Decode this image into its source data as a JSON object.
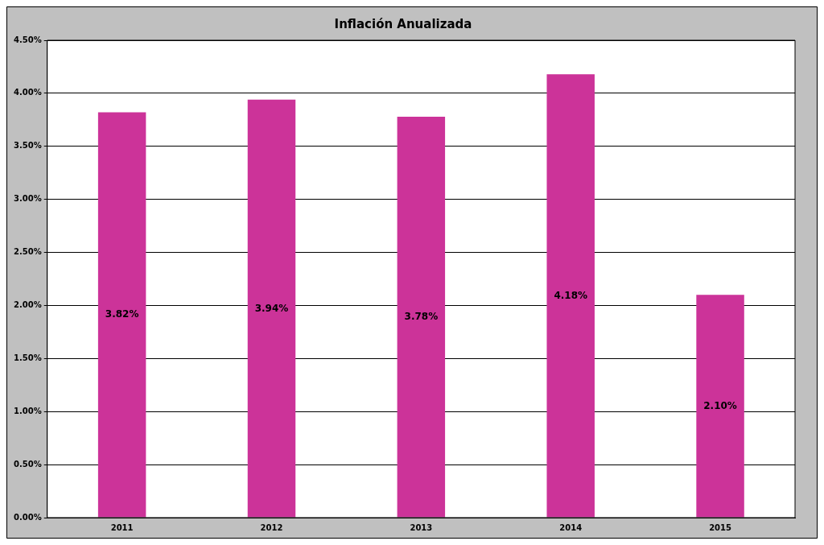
{
  "chart_data": {
    "type": "bar",
    "title": "Inflación Anualizada",
    "categories": [
      "2011",
      "2012",
      "2013",
      "2014",
      "2015"
    ],
    "values": [
      3.82,
      3.94,
      3.78,
      4.18,
      2.1
    ],
    "value_labels": [
      "3.82%",
      "3.94%",
      "3.78%",
      "4.18%",
      "2.10%"
    ],
    "color": "#cc3399",
    "ylim": [
      0,
      4.5
    ],
    "yticks": [
      {
        "value": 0,
        "label": "0.00%"
      },
      {
        "value": 0.5,
        "label": "0.50%"
      },
      {
        "value": 1,
        "label": "1.00%"
      },
      {
        "value": 1.5,
        "label": "1.50%"
      },
      {
        "value": 2,
        "label": "2.00%"
      },
      {
        "value": 2.5,
        "label": "2.50%"
      },
      {
        "value": 3,
        "label": "3.00%"
      },
      {
        "value": 3.5,
        "label": "3.50%"
      },
      {
        "value": 4,
        "label": "4.00%"
      },
      {
        "value": 4.5,
        "label": "4.50%"
      }
    ],
    "grid": "y",
    "legend": false
  }
}
